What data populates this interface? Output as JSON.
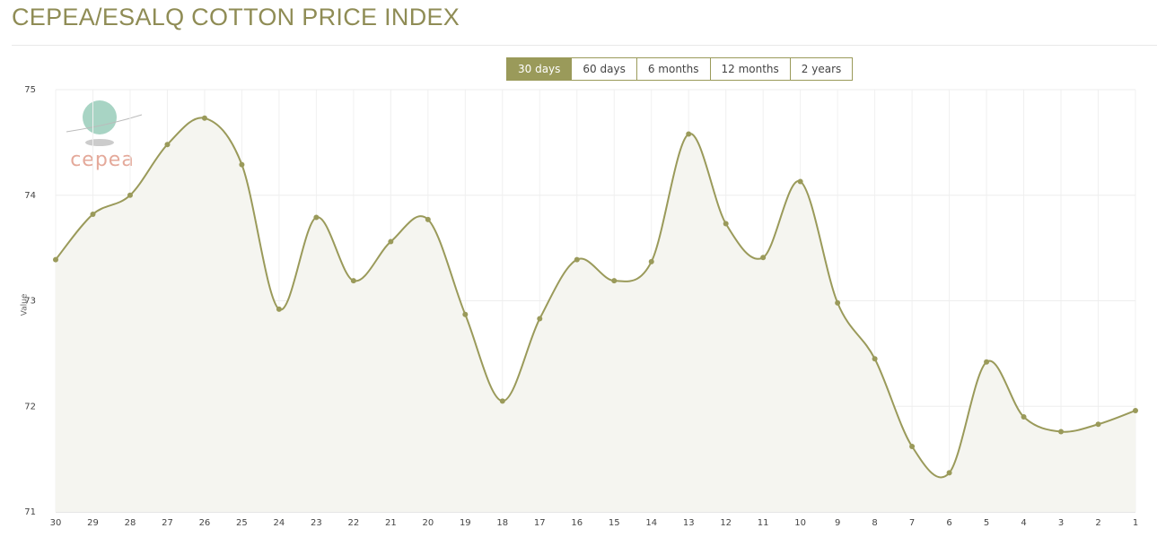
{
  "title": "CEPEA/ESALQ COTTON PRICE INDEX",
  "range_buttons": [
    "30 days",
    "60 days",
    "6 months",
    "12 months",
    "2 years"
  ],
  "logo_text": "cepea",
  "chart_data": {
    "type": "line",
    "y_label": "Value",
    "categories": [
      "30",
      "29",
      "28",
      "27",
      "26",
      "25",
      "24",
      "23",
      "22",
      "21",
      "20",
      "19",
      "18",
      "17",
      "16",
      "15",
      "14",
      "13",
      "12",
      "11",
      "10",
      "9",
      "8",
      "7",
      "6",
      "5",
      "4",
      "3",
      "2",
      "1"
    ],
    "series": [
      {
        "name": "Value",
        "color": "#9a9a5a",
        "values": [
          73.39,
          73.82,
          74.0,
          74.48,
          74.73,
          74.29,
          72.92,
          73.79,
          73.19,
          73.56,
          73.77,
          72.87,
          72.05,
          72.83,
          73.39,
          73.19,
          73.37,
          74.58,
          73.73,
          73.41,
          74.13,
          72.98,
          72.45,
          71.62,
          71.37,
          72.42,
          71.9,
          71.76,
          71.83,
          71.96
        ]
      }
    ],
    "ylim": [
      71,
      75
    ],
    "yticks": [
      71,
      72,
      73,
      74,
      75
    ],
    "grid": true
  }
}
